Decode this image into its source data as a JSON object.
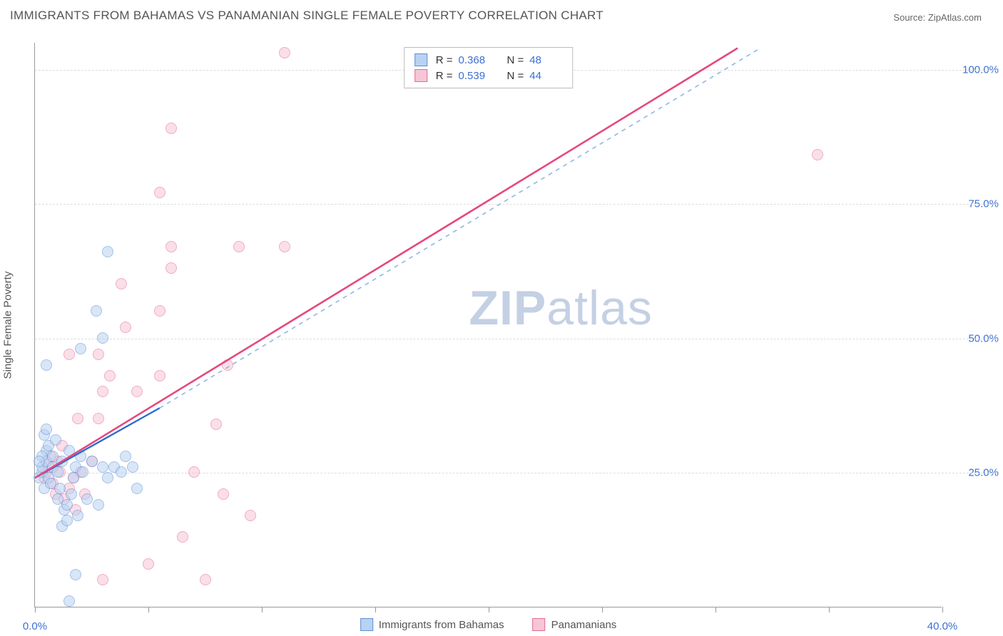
{
  "header": {
    "title": "IMMIGRANTS FROM BAHAMAS VS PANAMANIAN SINGLE FEMALE POVERTY CORRELATION CHART",
    "source_label": "Source:",
    "source_name": "ZipAtlas.com"
  },
  "watermark": {
    "bold": "ZIP",
    "light": "atlas"
  },
  "chart": {
    "type": "scatter",
    "xlim": [
      0,
      40
    ],
    "ylim": [
      0,
      105
    ],
    "y_axis_title": "Single Female Poverty",
    "x_ticks": [
      0,
      5,
      10,
      15,
      20,
      25,
      30,
      35,
      40
    ],
    "x_tick_labels": {
      "0": "0.0%",
      "40": "40.0%"
    },
    "y_gridlines": [
      25,
      50,
      75,
      100
    ],
    "y_tick_labels": {
      "25": "25.0%",
      "50": "50.0%",
      "75": "75.0%",
      "100": "100.0%"
    },
    "grid_color": "#dddddd",
    "axis_color": "#999999",
    "background_color": "#ffffff",
    "marker_radius": 8,
    "marker_opacity": 0.55,
    "marker_stroke_opacity": 0.9
  },
  "legend_top": {
    "r_label": "R =",
    "n_label": "N =",
    "rows": [
      {
        "swatch_fill": "#b9d2f2",
        "swatch_border": "#5a8fd6",
        "r": "0.368",
        "n": "48"
      },
      {
        "swatch_fill": "#f7c6d6",
        "swatch_border": "#e46a93",
        "r": "0.539",
        "n": "44"
      }
    ]
  },
  "legend_bottom": {
    "items": [
      {
        "swatch_fill": "#b9d2f2",
        "swatch_border": "#5a8fd6",
        "label": "Immigrants from Bahamas"
      },
      {
        "swatch_fill": "#f7c6d6",
        "swatch_border": "#e46a93",
        "label": "Panamanians"
      }
    ]
  },
  "series": {
    "bahamas": {
      "fill": "#b9d2f2",
      "stroke": "#5a8fd6",
      "trend_solid": {
        "x1": 0,
        "y1": 24,
        "x2": 5.5,
        "y2": 37,
        "color": "#2d6bd0",
        "width": 2.4
      },
      "trend_dashed": {
        "x1": 5.5,
        "y1": 37,
        "x2": 32,
        "y2": 104,
        "color": "#8fb5e8",
        "width": 1.6,
        "dash": "6,6"
      },
      "points": [
        {
          "x": 0.2,
          "y": 24
        },
        {
          "x": 0.3,
          "y": 25
        },
        {
          "x": 0.3,
          "y": 26
        },
        {
          "x": 0.4,
          "y": 22
        },
        {
          "x": 0.5,
          "y": 27
        },
        {
          "x": 0.5,
          "y": 29
        },
        {
          "x": 0.6,
          "y": 24
        },
        {
          "x": 0.6,
          "y": 30
        },
        {
          "x": 0.7,
          "y": 23
        },
        {
          "x": 0.8,
          "y": 28
        },
        {
          "x": 0.8,
          "y": 26
        },
        {
          "x": 0.9,
          "y": 31
        },
        {
          "x": 1.0,
          "y": 25
        },
        {
          "x": 1.0,
          "y": 20
        },
        {
          "x": 1.1,
          "y": 22
        },
        {
          "x": 1.2,
          "y": 27
        },
        {
          "x": 1.3,
          "y": 18
        },
        {
          "x": 1.4,
          "y": 19
        },
        {
          "x": 1.5,
          "y": 29
        },
        {
          "x": 1.6,
          "y": 21
        },
        {
          "x": 1.7,
          "y": 24
        },
        {
          "x": 1.8,
          "y": 26
        },
        {
          "x": 1.9,
          "y": 17
        },
        {
          "x": 2.0,
          "y": 28
        },
        {
          "x": 2.1,
          "y": 25
        },
        {
          "x": 2.3,
          "y": 20
        },
        {
          "x": 2.5,
          "y": 27
        },
        {
          "x": 2.8,
          "y": 19
        },
        {
          "x": 3.0,
          "y": 26
        },
        {
          "x": 3.2,
          "y": 24
        },
        {
          "x": 3.5,
          "y": 26
        },
        {
          "x": 3.8,
          "y": 25
        },
        {
          "x": 4.0,
          "y": 28
        },
        {
          "x": 4.3,
          "y": 26
        },
        {
          "x": 4.5,
          "y": 22
        },
        {
          "x": 0.5,
          "y": 45
        },
        {
          "x": 2.0,
          "y": 48
        },
        {
          "x": 3.0,
          "y": 50
        },
        {
          "x": 3.2,
          "y": 66
        },
        {
          "x": 2.7,
          "y": 55
        },
        {
          "x": 1.5,
          "y": 1
        },
        {
          "x": 1.8,
          "y": 6
        },
        {
          "x": 1.2,
          "y": 15
        },
        {
          "x": 1.4,
          "y": 16
        },
        {
          "x": 0.4,
          "y": 32
        },
        {
          "x": 0.5,
          "y": 33
        },
        {
          "x": 0.3,
          "y": 28
        },
        {
          "x": 0.2,
          "y": 27
        }
      ]
    },
    "panamanians": {
      "fill": "#f7c6d6",
      "stroke": "#e46a93",
      "trend_solid": {
        "x1": 0,
        "y1": 24,
        "x2": 31,
        "y2": 104,
        "color": "#e5487e",
        "width": 2.6
      },
      "points": [
        {
          "x": 0.4,
          "y": 24
        },
        {
          "x": 0.5,
          "y": 25
        },
        {
          "x": 0.6,
          "y": 26
        },
        {
          "x": 0.8,
          "y": 23
        },
        {
          "x": 0.9,
          "y": 21
        },
        {
          "x": 1.0,
          "y": 27
        },
        {
          "x": 1.1,
          "y": 25
        },
        {
          "x": 1.3,
          "y": 20
        },
        {
          "x": 1.5,
          "y": 22
        },
        {
          "x": 1.7,
          "y": 24
        },
        {
          "x": 2.0,
          "y": 25
        },
        {
          "x": 2.2,
          "y": 21
        },
        {
          "x": 2.5,
          "y": 27
        },
        {
          "x": 2.8,
          "y": 35
        },
        {
          "x": 3.0,
          "y": 40
        },
        {
          "x": 3.3,
          "y": 43
        },
        {
          "x": 1.5,
          "y": 47
        },
        {
          "x": 2.8,
          "y": 47
        },
        {
          "x": 4.5,
          "y": 40
        },
        {
          "x": 5.5,
          "y": 43
        },
        {
          "x": 8.5,
          "y": 45
        },
        {
          "x": 4.0,
          "y": 52
        },
        {
          "x": 5.5,
          "y": 55
        },
        {
          "x": 3.8,
          "y": 60
        },
        {
          "x": 6.0,
          "y": 63
        },
        {
          "x": 6.0,
          "y": 67
        },
        {
          "x": 9.0,
          "y": 67
        },
        {
          "x": 11.0,
          "y": 67
        },
        {
          "x": 5.5,
          "y": 77
        },
        {
          "x": 6.0,
          "y": 89
        },
        {
          "x": 11.0,
          "y": 103
        },
        {
          "x": 34.5,
          "y": 84
        },
        {
          "x": 8.0,
          "y": 34
        },
        {
          "x": 7.0,
          "y": 25
        },
        {
          "x": 3.0,
          "y": 5
        },
        {
          "x": 5.0,
          "y": 8
        },
        {
          "x": 7.5,
          "y": 5
        },
        {
          "x": 6.5,
          "y": 13
        },
        {
          "x": 9.5,
          "y": 17
        },
        {
          "x": 8.3,
          "y": 21
        },
        {
          "x": 1.8,
          "y": 18
        },
        {
          "x": 0.7,
          "y": 28
        },
        {
          "x": 1.2,
          "y": 30
        },
        {
          "x": 1.9,
          "y": 35
        }
      ]
    }
  }
}
